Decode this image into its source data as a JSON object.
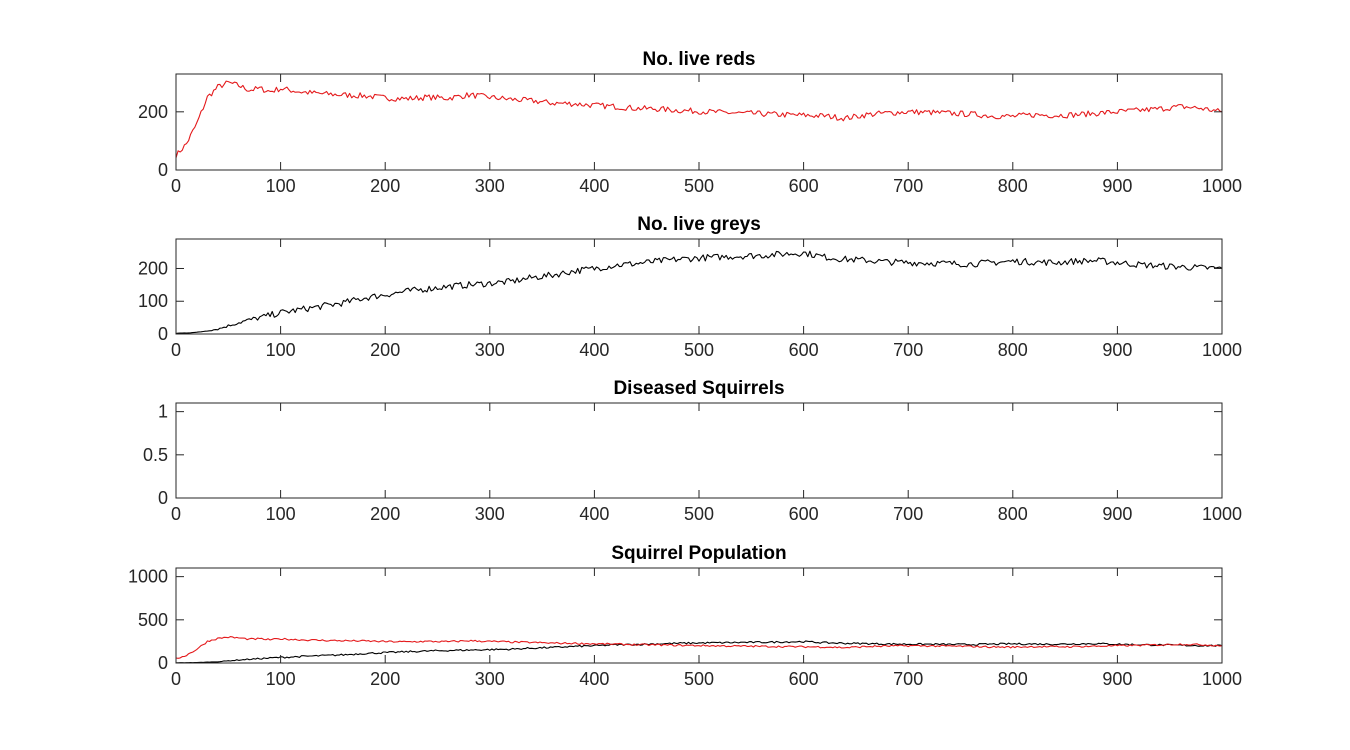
{
  "chart_data": [
    {
      "type": "line",
      "title": "No. live reds",
      "xlim": [
        0,
        1000
      ],
      "ylim": [
        0,
        330
      ],
      "xticks": [
        "0",
        "100",
        "200",
        "300",
        "400",
        "500",
        "600",
        "700",
        "800",
        "900",
        "1000"
      ],
      "yticks": [
        "0",
        "200"
      ],
      "grid": false,
      "series": [
        {
          "color": "#e41a1c",
          "x": [
            0,
            10,
            20,
            30,
            40,
            50,
            60,
            70,
            80,
            90,
            100,
            120,
            140,
            160,
            180,
            200,
            220,
            240,
            260,
            280,
            300,
            320,
            340,
            360,
            380,
            400,
            420,
            440,
            460,
            480,
            500,
            520,
            540,
            560,
            580,
            600,
            620,
            640,
            660,
            680,
            700,
            720,
            740,
            760,
            780,
            800,
            820,
            840,
            860,
            880,
            900,
            920,
            940,
            960,
            980,
            1000
          ],
          "y": [
            50,
            90,
            160,
            250,
            285,
            300,
            290,
            275,
            280,
            270,
            280,
            268,
            262,
            258,
            255,
            248,
            245,
            250,
            247,
            258,
            250,
            243,
            238,
            230,
            228,
            222,
            218,
            212,
            210,
            205,
            202,
            198,
            195,
            193,
            190,
            188,
            186,
            178,
            190,
            196,
            200,
            198,
            195,
            192,
            186,
            184,
            190,
            188,
            190,
            195,
            200,
            205,
            210,
            218,
            212,
            200
          ]
        }
      ]
    },
    {
      "type": "line",
      "title": "No. live greys",
      "xlim": [
        0,
        1000
      ],
      "ylim": [
        0,
        290
      ],
      "xticks": [
        "0",
        "100",
        "200",
        "300",
        "400",
        "500",
        "600",
        "700",
        "800",
        "900",
        "1000"
      ],
      "yticks": [
        "0",
        "100",
        "200"
      ],
      "grid": false,
      "series": [
        {
          "color": "#000000",
          "x": [
            0,
            20,
            40,
            60,
            80,
            100,
            120,
            140,
            160,
            180,
            200,
            220,
            240,
            260,
            280,
            300,
            320,
            340,
            360,
            380,
            400,
            420,
            440,
            460,
            480,
            500,
            520,
            540,
            560,
            580,
            600,
            620,
            640,
            660,
            680,
            700,
            720,
            740,
            760,
            780,
            800,
            820,
            840,
            860,
            880,
            900,
            920,
            940,
            960,
            980,
            1000
          ],
          "y": [
            2,
            5,
            15,
            35,
            50,
            65,
            75,
            85,
            95,
            110,
            120,
            130,
            138,
            145,
            150,
            155,
            160,
            172,
            180,
            192,
            200,
            210,
            215,
            222,
            228,
            232,
            235,
            238,
            240,
            244,
            248,
            235,
            228,
            225,
            220,
            218,
            217,
            215,
            214,
            218,
            222,
            220,
            218,
            222,
            224,
            218,
            212,
            208,
            205,
            202,
            200
          ]
        }
      ]
    },
    {
      "type": "line",
      "title": "Diseased Squirrels",
      "xlim": [
        0,
        1000
      ],
      "ylim": [
        0,
        1.1
      ],
      "xticks": [
        "0",
        "100",
        "200",
        "300",
        "400",
        "500",
        "600",
        "700",
        "800",
        "900",
        "1000"
      ],
      "yticks": [
        "0",
        "0.5",
        "1"
      ],
      "grid": false,
      "series": [
        {
          "color": "#000000",
          "x": [
            0,
            1000
          ],
          "y": [
            0,
            0
          ]
        },
        {
          "color": "#e41a1c",
          "x": [
            0,
            1000
          ],
          "y": [
            0,
            0
          ]
        }
      ]
    },
    {
      "type": "line",
      "title": "Squirrel Population",
      "xlim": [
        0,
        1000
      ],
      "ylim": [
        0,
        1100
      ],
      "xticks": [
        "0",
        "100",
        "200",
        "300",
        "400",
        "500",
        "600",
        "700",
        "800",
        "900",
        "1000"
      ],
      "yticks": [
        "0",
        "500",
        "1000"
      ],
      "grid": false,
      "series": [
        {
          "color": "#000000",
          "x": [
            0,
            20,
            40,
            60,
            80,
            100,
            120,
            140,
            160,
            180,
            200,
            220,
            240,
            260,
            280,
            300,
            320,
            340,
            360,
            380,
            400,
            420,
            440,
            460,
            480,
            500,
            520,
            540,
            560,
            580,
            600,
            620,
            640,
            660,
            680,
            700,
            720,
            740,
            760,
            780,
            800,
            820,
            840,
            860,
            880,
            900,
            920,
            940,
            960,
            980,
            1000
          ],
          "y": [
            2,
            5,
            15,
            35,
            50,
            65,
            75,
            85,
            95,
            110,
            120,
            130,
            138,
            145,
            150,
            155,
            160,
            172,
            180,
            192,
            200,
            210,
            215,
            222,
            228,
            232,
            235,
            238,
            240,
            244,
            248,
            235,
            228,
            225,
            220,
            218,
            217,
            215,
            214,
            218,
            222,
            220,
            218,
            222,
            224,
            218,
            212,
            208,
            205,
            202,
            200
          ]
        },
        {
          "color": "#e41a1c",
          "x": [
            0,
            10,
            20,
            30,
            40,
            50,
            60,
            70,
            80,
            90,
            100,
            120,
            140,
            160,
            180,
            200,
            220,
            240,
            260,
            280,
            300,
            320,
            340,
            360,
            380,
            400,
            420,
            440,
            460,
            480,
            500,
            520,
            540,
            560,
            580,
            600,
            620,
            640,
            660,
            680,
            700,
            720,
            740,
            760,
            780,
            800,
            820,
            840,
            860,
            880,
            900,
            920,
            940,
            960,
            980,
            1000
          ],
          "y": [
            50,
            90,
            160,
            250,
            285,
            300,
            290,
            275,
            280,
            270,
            280,
            268,
            262,
            258,
            255,
            248,
            245,
            250,
            247,
            258,
            250,
            243,
            238,
            230,
            228,
            222,
            218,
            212,
            210,
            205,
            202,
            198,
            195,
            193,
            190,
            188,
            186,
            178,
            190,
            196,
            200,
            198,
            195,
            192,
            186,
            184,
            190,
            188,
            190,
            195,
            200,
            205,
            210,
            218,
            212,
            200
          ]
        }
      ]
    }
  ]
}
